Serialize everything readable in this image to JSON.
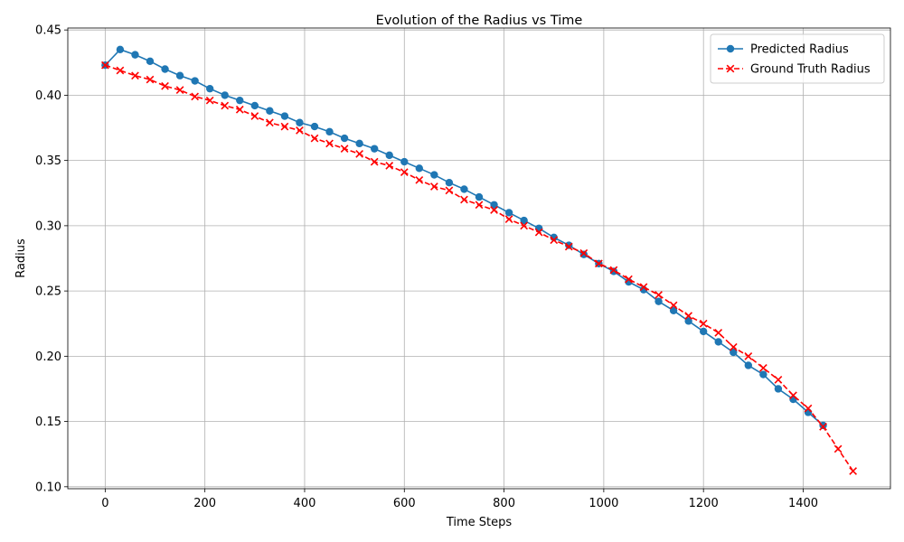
{
  "chart_data": {
    "type": "line",
    "title": "Evolution of the Radius vs Time",
    "xlabel": "Time Steps",
    "ylabel": "Radius",
    "xlim": [
      -75,
      1575
    ],
    "ylim": [
      0.0985,
      0.4515
    ],
    "xticks": [
      0,
      200,
      400,
      600,
      800,
      1000,
      1200,
      1400
    ],
    "yticks": [
      0.1,
      0.15,
      0.2,
      0.25,
      0.3,
      0.35,
      0.4,
      0.45
    ],
    "ytick_labels": [
      "0.10",
      "0.15",
      "0.20",
      "0.25",
      "0.30",
      "0.35",
      "0.40",
      "0.45"
    ],
    "grid": true,
    "legend_position": "upper right",
    "series": [
      {
        "name": "Predicted Radius",
        "color": "#1f77b4",
        "line_style": "solid",
        "marker": "circle",
        "x": [
          0,
          30,
          60,
          90,
          120,
          150,
          180,
          210,
          240,
          270,
          300,
          330,
          360,
          390,
          420,
          450,
          480,
          510,
          540,
          570,
          600,
          630,
          660,
          690,
          720,
          750,
          780,
          810,
          840,
          870,
          900,
          930,
          960,
          990,
          1020,
          1050,
          1080,
          1110,
          1140,
          1170,
          1200,
          1230,
          1260,
          1290,
          1320,
          1350,
          1380,
          1410,
          1440
        ],
        "y": [
          0.423,
          0.435,
          0.431,
          0.426,
          0.42,
          0.415,
          0.411,
          0.405,
          0.4,
          0.396,
          0.392,
          0.388,
          0.384,
          0.379,
          0.376,
          0.372,
          0.367,
          0.363,
          0.359,
          0.354,
          0.349,
          0.344,
          0.339,
          0.333,
          0.328,
          0.322,
          0.316,
          0.31,
          0.304,
          0.298,
          0.291,
          0.285,
          0.278,
          0.271,
          0.265,
          0.257,
          0.251,
          0.242,
          0.235,
          0.227,
          0.219,
          0.211,
          0.203,
          0.193,
          0.186,
          0.175,
          0.167,
          0.157,
          0.147
        ]
      },
      {
        "name": "Ground Truth Radius",
        "color": "#ff0000",
        "line_style": "dashed",
        "marker": "x",
        "x": [
          0,
          30,
          60,
          90,
          120,
          150,
          180,
          210,
          240,
          270,
          300,
          330,
          360,
          390,
          420,
          450,
          480,
          510,
          540,
          570,
          600,
          630,
          660,
          690,
          720,
          750,
          780,
          810,
          840,
          870,
          900,
          930,
          960,
          990,
          1020,
          1050,
          1080,
          1110,
          1140,
          1170,
          1200,
          1230,
          1260,
          1290,
          1320,
          1350,
          1380,
          1410,
          1440,
          1470,
          1500
        ],
        "y": [
          0.423,
          0.419,
          0.415,
          0.412,
          0.407,
          0.404,
          0.399,
          0.396,
          0.392,
          0.389,
          0.384,
          0.379,
          0.376,
          0.373,
          0.367,
          0.363,
          0.359,
          0.355,
          0.349,
          0.346,
          0.341,
          0.335,
          0.33,
          0.327,
          0.32,
          0.316,
          0.312,
          0.305,
          0.3,
          0.295,
          0.289,
          0.284,
          0.279,
          0.271,
          0.266,
          0.259,
          0.253,
          0.247,
          0.239,
          0.231,
          0.225,
          0.218,
          0.207,
          0.2,
          0.191,
          0.182,
          0.17,
          0.16,
          0.146,
          0.129,
          0.112
        ]
      }
    ]
  }
}
